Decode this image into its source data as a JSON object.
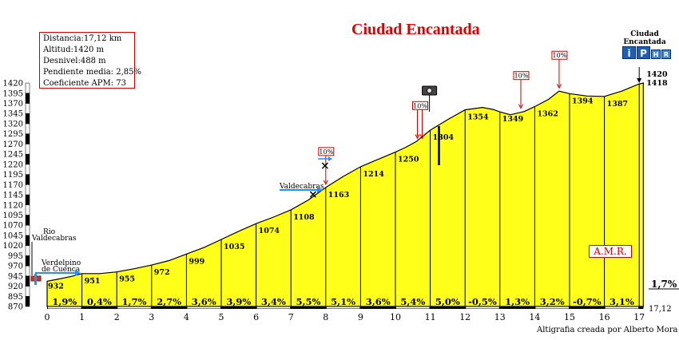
{
  "title": "Ciudad Encantada",
  "info": [
    "Distancia:17,12 km",
    "Altitud:1420 m",
    "Desnivel:488 m",
    "Pendiente media: 2,85%",
    "Coeficiente APM: 73"
  ],
  "credit": "Altigrafia creada por Alberto Mora",
  "badge": "A.M.R.",
  "destination": {
    "line1": "Ciudad",
    "line2": "Encantada",
    "icons": [
      "i",
      "P",
      "H",
      "R"
    ]
  },
  "colors": {
    "fill": "#ffff1a",
    "title": "#dd0000",
    "tick_bar": "#000000",
    "arrow": "#1e90ff",
    "percent_box": "#cc0000"
  },
  "chart_data": {
    "type": "area",
    "title": "Ciudad Encantada",
    "xlabel": "",
    "ylabel": "",
    "xlim": [
      0,
      17.12
    ],
    "ylim": [
      870,
      1420
    ],
    "yticks": [
      870,
      895,
      920,
      945,
      970,
      995,
      1020,
      1045,
      1070,
      1095,
      1120,
      1145,
      1170,
      1195,
      1220,
      1245,
      1270,
      1295,
      1320,
      1345,
      1370,
      1395,
      1420
    ],
    "xticks": [
      0,
      1,
      2,
      3,
      4,
      5,
      6,
      7,
      8,
      9,
      10,
      11,
      12,
      13,
      14,
      15,
      16,
      17
    ],
    "profile": [
      {
        "x": 0,
        "y": 932
      },
      {
        "x": 0.3,
        "y": 937
      },
      {
        "x": 0.7,
        "y": 944
      },
      {
        "x": 1,
        "y": 951
      },
      {
        "x": 1.5,
        "y": 951
      },
      {
        "x": 2,
        "y": 955
      },
      {
        "x": 2.5,
        "y": 963
      },
      {
        "x": 3,
        "y": 972
      },
      {
        "x": 3.5,
        "y": 983
      },
      {
        "x": 4,
        "y": 999
      },
      {
        "x": 4.5,
        "y": 1015
      },
      {
        "x": 5,
        "y": 1035
      },
      {
        "x": 5.5,
        "y": 1055
      },
      {
        "x": 6,
        "y": 1074
      },
      {
        "x": 6.5,
        "y": 1090
      },
      {
        "x": 7,
        "y": 1108
      },
      {
        "x": 7.5,
        "y": 1132
      },
      {
        "x": 8,
        "y": 1163
      },
      {
        "x": 8.5,
        "y": 1190
      },
      {
        "x": 9,
        "y": 1214
      },
      {
        "x": 9.5,
        "y": 1232
      },
      {
        "x": 10,
        "y": 1250
      },
      {
        "x": 10.3,
        "y": 1262
      },
      {
        "x": 10.6,
        "y": 1276
      },
      {
        "x": 11,
        "y": 1304
      },
      {
        "x": 11.5,
        "y": 1330
      },
      {
        "x": 12,
        "y": 1354
      },
      {
        "x": 12.5,
        "y": 1360
      },
      {
        "x": 12.8,
        "y": 1355
      },
      {
        "x": 13,
        "y": 1349
      },
      {
        "x": 13.3,
        "y": 1342
      },
      {
        "x": 13.7,
        "y": 1350
      },
      {
        "x": 14,
        "y": 1362
      },
      {
        "x": 14.4,
        "y": 1380
      },
      {
        "x": 14.7,
        "y": 1400
      },
      {
        "x": 15,
        "y": 1394
      },
      {
        "x": 15.5,
        "y": 1388
      },
      {
        "x": 16,
        "y": 1387
      },
      {
        "x": 16.5,
        "y": 1400
      },
      {
        "x": 17,
        "y": 1418
      },
      {
        "x": 17.12,
        "y": 1420
      }
    ],
    "elevation_labels": [
      {
        "x": 0,
        "y": 932,
        "label": "932"
      },
      {
        "x": 1,
        "y": 951,
        "label": "951"
      },
      {
        "x": 2,
        "y": 955,
        "label": "955"
      },
      {
        "x": 3,
        "y": 972,
        "label": "972"
      },
      {
        "x": 4,
        "y": 999,
        "label": "999"
      },
      {
        "x": 5,
        "y": 1035,
        "label": "1035"
      },
      {
        "x": 6,
        "y": 1074,
        "label": "1074"
      },
      {
        "x": 7,
        "y": 1108,
        "label": "1108"
      },
      {
        "x": 8,
        "y": 1163,
        "label": "1163"
      },
      {
        "x": 9,
        "y": 1214,
        "label": "1214"
      },
      {
        "x": 10,
        "y": 1250,
        "label": "1250"
      },
      {
        "x": 11,
        "y": 1304,
        "label": "1304"
      },
      {
        "x": 12,
        "y": 1354,
        "label": "1354"
      },
      {
        "x": 13,
        "y": 1349,
        "label": "1349"
      },
      {
        "x": 14,
        "y": 1362,
        "label": "1362"
      },
      {
        "x": 15,
        "y": 1394,
        "label": "1394"
      },
      {
        "x": 16,
        "y": 1387,
        "label": "1387"
      },
      {
        "x": 17,
        "y": 1418,
        "label": "1418"
      }
    ],
    "segment_grades": [
      "1,9%",
      "0,4%",
      "1,7%",
      "2,7%",
      "3,6%",
      "3,9%",
      "3,4%",
      "5,5%",
      "5,1%",
      "3,6%",
      "5,4%",
      "5,0%",
      "-0,5%",
      "1,3%",
      "3,2%",
      "-0,7%",
      "3,1%"
    ],
    "final_grade": "1,7%",
    "end_distance": "17,12",
    "summit_label": "1420",
    "peak_markers": [
      {
        "x": 8,
        "label": "10%"
      },
      {
        "x": 10.7,
        "label": "10%"
      },
      {
        "x": 13.6,
        "label": "10%"
      },
      {
        "x": 14.7,
        "label": "10%"
      }
    ],
    "places": [
      {
        "x": 0,
        "line1": "Rio",
        "line2": "Valdecabras"
      },
      {
        "x": 0,
        "line1": "Verdelpino",
        "line2": "de Cuenca"
      },
      {
        "x": 8,
        "line1": "Valdecabras",
        "line2": ""
      }
    ]
  }
}
